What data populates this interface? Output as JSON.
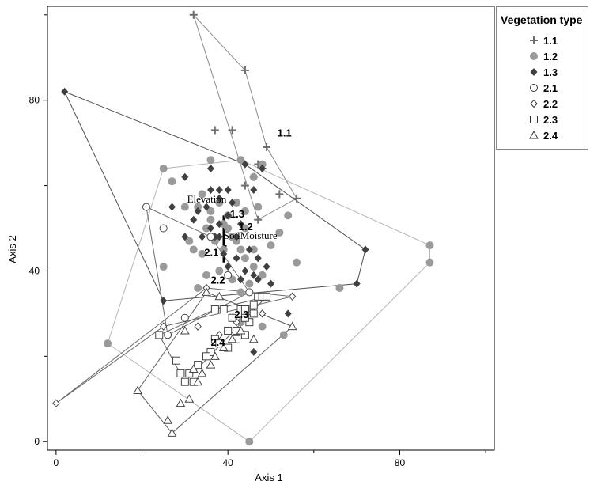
{
  "chart_data": {
    "type": "scatter",
    "xlabel": "Axis 1",
    "ylabel": "Axis 2",
    "xlim": [
      -2,
      102
    ],
    "ylim": [
      -2,
      102
    ],
    "xticks": [
      0,
      40,
      80
    ],
    "yticks": [
      0,
      40,
      80
    ],
    "legend_title": "Vegetation type",
    "legend_placement": "right",
    "grid": false,
    "series": [
      {
        "name": "1.1",
        "marker": "plus",
        "color": "#6f6f6f",
        "hull_color": "#8a8a8a",
        "points": [
          [
            32,
            100
          ],
          [
            44,
            87
          ],
          [
            37,
            73
          ],
          [
            41,
            73
          ],
          [
            49,
            69
          ],
          [
            47,
            65
          ],
          [
            48,
            64
          ],
          [
            46,
            62
          ],
          [
            56,
            57
          ],
          [
            52,
            58
          ],
          [
            44,
            60
          ],
          [
            47,
            52
          ]
        ],
        "hull": [
          [
            32,
            100
          ],
          [
            44,
            87
          ],
          [
            49,
            69
          ],
          [
            56,
            57
          ],
          [
            47,
            52
          ],
          [
            32,
            100
          ]
        ]
      },
      {
        "name": "1.2",
        "marker": "circle",
        "color": "#9a9a9a",
        "hull_color": "#b5b5b5",
        "points": [
          [
            25,
            64
          ],
          [
            27,
            61
          ],
          [
            36,
            66
          ],
          [
            43,
            66
          ],
          [
            48,
            65
          ],
          [
            46,
            62
          ],
          [
            87,
            46
          ],
          [
            87,
            42
          ],
          [
            66,
            36
          ],
          [
            56,
            42
          ],
          [
            45,
            0
          ],
          [
            12,
            23
          ],
          [
            25,
            41
          ],
          [
            33,
            55
          ],
          [
            34,
            58
          ],
          [
            36,
            54
          ],
          [
            38,
            56
          ],
          [
            40,
            50
          ],
          [
            41,
            48
          ],
          [
            42,
            47
          ],
          [
            43,
            45
          ],
          [
            44,
            43
          ],
          [
            46,
            41
          ],
          [
            38,
            40
          ],
          [
            35,
            39
          ],
          [
            33,
            36
          ],
          [
            36,
            52
          ],
          [
            39,
            45
          ],
          [
            41,
            38
          ],
          [
            45,
            37
          ],
          [
            48,
            39
          ],
          [
            50,
            46
          ],
          [
            52,
            49
          ],
          [
            54,
            53
          ],
          [
            47,
            55
          ],
          [
            40,
            53
          ],
          [
            35,
            50
          ],
          [
            31,
            47
          ],
          [
            34,
            44
          ],
          [
            43,
            35
          ],
          [
            45,
            31
          ],
          [
            48,
            27
          ],
          [
            43,
            28
          ],
          [
            53,
            25
          ],
          [
            44,
            54
          ],
          [
            39,
            51
          ],
          [
            37,
            47
          ],
          [
            42,
            56
          ],
          [
            44,
            50
          ],
          [
            30,
            55
          ],
          [
            32,
            45
          ],
          [
            46,
            45
          ]
        ],
        "hull": [
          [
            25,
            64
          ],
          [
            43,
            66
          ],
          [
            87,
            46
          ],
          [
            87,
            42
          ],
          [
            45,
            0
          ],
          [
            12,
            23
          ],
          [
            25,
            64
          ]
        ]
      },
      {
        "name": "1.3",
        "marker": "diamond",
        "color": "#404040",
        "hull_color": "#505050",
        "points": [
          [
            2,
            82
          ],
          [
            44,
            65
          ],
          [
            36,
            64
          ],
          [
            30,
            62
          ],
          [
            36,
            59
          ],
          [
            38,
            59
          ],
          [
            40,
            59
          ],
          [
            27,
            55
          ],
          [
            33,
            54
          ],
          [
            35,
            55
          ],
          [
            38,
            57
          ],
          [
            41,
            56
          ],
          [
            43,
            51
          ],
          [
            32,
            52
          ],
          [
            36,
            50
          ],
          [
            34,
            48
          ],
          [
            38,
            48
          ],
          [
            45,
            45
          ],
          [
            47,
            43
          ],
          [
            49,
            41
          ],
          [
            39,
            44
          ],
          [
            42,
            43
          ],
          [
            44,
            40
          ],
          [
            46,
            39
          ],
          [
            30,
            48
          ],
          [
            40,
            41
          ],
          [
            43,
            38
          ],
          [
            47,
            38
          ],
          [
            50,
            37
          ],
          [
            72,
            45
          ],
          [
            70,
            37
          ],
          [
            54,
            30
          ],
          [
            25,
            33
          ],
          [
            37,
            48
          ],
          [
            42,
            48
          ],
          [
            40,
            53
          ],
          [
            38,
            51
          ],
          [
            46,
            21
          ],
          [
            46,
            59
          ],
          [
            48,
            64
          ]
        ],
        "hull": [
          [
            2,
            82
          ],
          [
            44,
            65
          ],
          [
            72,
            45
          ],
          [
            70,
            37
          ],
          [
            25,
            33
          ],
          [
            2,
            82
          ]
        ]
      },
      {
        "name": "2.1",
        "marker": "circle-open",
        "color": "#444444",
        "hull_color": "#6a6a6a",
        "points": [
          [
            21,
            55
          ],
          [
            25,
            50
          ],
          [
            36,
            48
          ],
          [
            40,
            39
          ],
          [
            30,
            29
          ],
          [
            26,
            25
          ],
          [
            45,
            35
          ],
          [
            44,
            30
          ]
        ],
        "hull": [
          [
            21,
            55
          ],
          [
            36,
            48
          ],
          [
            45,
            35
          ],
          [
            26,
            25
          ],
          [
            21,
            55
          ]
        ]
      },
      {
        "name": "2.2",
        "marker": "diamond-open",
        "color": "#444444",
        "hull_color": "#6a6a6a",
        "points": [
          [
            0,
            9
          ],
          [
            25,
            27
          ],
          [
            35,
            36
          ],
          [
            55,
            34
          ],
          [
            48,
            30
          ],
          [
            33,
            27
          ],
          [
            38,
            25
          ],
          [
            42,
            28
          ]
        ],
        "hull": [
          [
            0,
            9
          ],
          [
            35,
            36
          ],
          [
            55,
            34
          ],
          [
            25,
            27
          ],
          [
            0,
            9
          ]
        ]
      },
      {
        "name": "2.3",
        "marker": "square-open",
        "color": "#444444",
        "hull_color": "#5c5c5c",
        "points": [
          [
            24,
            25
          ],
          [
            28,
            19
          ],
          [
            29,
            16
          ],
          [
            30,
            14
          ],
          [
            32,
            14
          ],
          [
            36,
            21
          ],
          [
            37,
            24
          ],
          [
            40,
            26
          ],
          [
            42,
            24
          ],
          [
            44,
            25
          ],
          [
            45,
            28
          ],
          [
            46,
            32
          ],
          [
            47,
            34
          ],
          [
            48,
            34
          ],
          [
            49,
            34
          ],
          [
            43,
            31
          ],
          [
            39,
            31
          ],
          [
            41,
            29
          ],
          [
            44,
            29
          ],
          [
            38,
            23
          ],
          [
            35,
            20
          ],
          [
            33,
            18
          ],
          [
            31,
            16
          ],
          [
            40,
            22
          ],
          [
            42,
            26
          ],
          [
            37,
            31
          ],
          [
            44,
            31
          ],
          [
            46,
            30
          ]
        ],
        "hull": [
          [
            24,
            25
          ],
          [
            30,
            14
          ],
          [
            49,
            34
          ],
          [
            37,
            31
          ],
          [
            24,
            25
          ]
        ]
      },
      {
        "name": "2.4",
        "marker": "triangle-open",
        "color": "#444444",
        "hull_color": "#5c5c5c",
        "points": [
          [
            19,
            12
          ],
          [
            26,
            5
          ],
          [
            27,
            2
          ],
          [
            29,
            9
          ],
          [
            31,
            10
          ],
          [
            33,
            14
          ],
          [
            34,
            16
          ],
          [
            36,
            18
          ],
          [
            37,
            20
          ],
          [
            39,
            22
          ],
          [
            41,
            24
          ],
          [
            43,
            26
          ],
          [
            46,
            24
          ],
          [
            55,
            27
          ],
          [
            38,
            34
          ],
          [
            35,
            35
          ],
          [
            30,
            26
          ],
          [
            32,
            17
          ]
        ],
        "hull": [
          [
            19,
            12
          ],
          [
            27,
            2
          ],
          [
            55,
            27
          ],
          [
            35,
            35
          ],
          [
            19,
            12
          ]
        ]
      }
    ],
    "annotations": [
      {
        "text": "1.1",
        "x": 51.5,
        "y": 71.5,
        "style": "bold"
      },
      {
        "text": "1.3",
        "x": 40.5,
        "y": 52.5,
        "style": "bold"
      },
      {
        "text": "1.2",
        "x": 42.5,
        "y": 49.5,
        "style": "bold"
      },
      {
        "text": "2.1",
        "x": 34.5,
        "y": 43.5,
        "style": "bold"
      },
      {
        "text": "2.2",
        "x": 36,
        "y": 37,
        "style": "bold"
      },
      {
        "text": "2.3",
        "x": 41.5,
        "y": 29,
        "style": "bold"
      },
      {
        "text": "2.4",
        "x": 36,
        "y": 22.5,
        "style": "bold"
      },
      {
        "text": "Elevation",
        "x": 30.5,
        "y": 56,
        "style": "serif"
      },
      {
        "text": "SoilMoisture",
        "x": 39,
        "y": 47.5,
        "style": "serif"
      }
    ],
    "vectors": [
      {
        "name": "Elevation",
        "from": [
          39,
          42
        ],
        "to": [
          39,
          53
        ]
      },
      {
        "name": "SoilMoisture",
        "from": [
          39,
          42
        ],
        "to": [
          39.5,
          46
        ]
      }
    ]
  }
}
